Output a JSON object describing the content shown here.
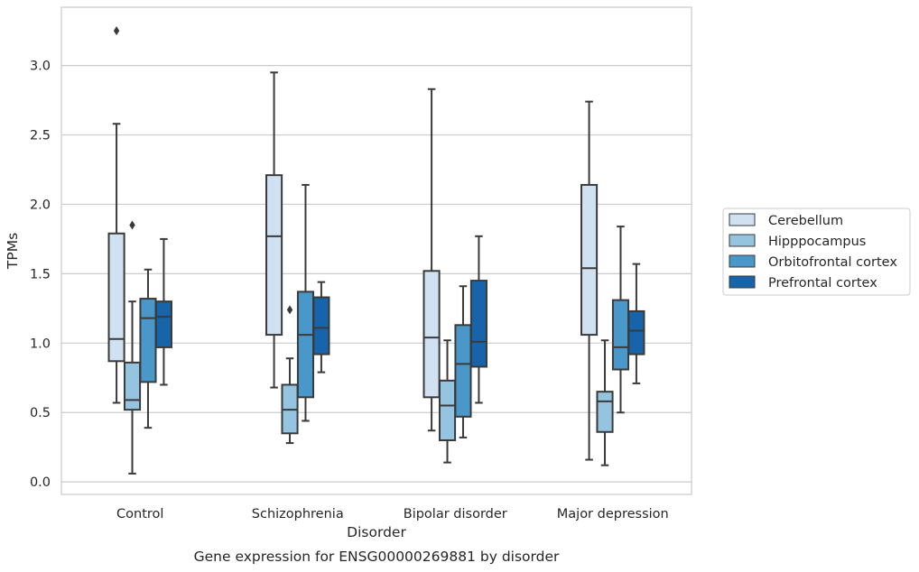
{
  "caption": "Gene expression for ENSG00000269881 by disorder",
  "chart_data": {
    "type": "box",
    "xlabel": "Disorder",
    "ylabel": "TPMs",
    "ylim": [
      -0.09,
      3.42
    ],
    "yticks": [
      0.0,
      0.5,
      1.0,
      1.5,
      2.0,
      2.5,
      3.0
    ],
    "ytick_labels": [
      "0.0",
      "0.5",
      "1.0",
      "1.5",
      "2.0",
      "2.5",
      "3.0"
    ],
    "categories": [
      "Control",
      "Schizophrenia",
      "Bipolar disorder",
      "Major depression"
    ],
    "grid": "horizontal",
    "legend_position": "right",
    "series": [
      {
        "name": "Cerebellum",
        "color": "#d0e1f2",
        "boxes": [
          {
            "whislo": 0.57,
            "q1": 0.87,
            "med": 1.03,
            "q3": 1.79,
            "whishi": 2.58,
            "fliers": [
              3.25
            ]
          },
          {
            "whislo": 0.68,
            "q1": 1.06,
            "med": 1.77,
            "q3": 2.21,
            "whishi": 2.95,
            "fliers": []
          },
          {
            "whislo": 0.37,
            "q1": 0.61,
            "med": 1.04,
            "q3": 1.52,
            "whishi": 2.83,
            "fliers": []
          },
          {
            "whislo": 0.16,
            "q1": 1.06,
            "med": 1.54,
            "q3": 2.14,
            "whishi": 2.74,
            "fliers": []
          }
        ]
      },
      {
        "name": "Hipppocampus",
        "color": "#94c4df",
        "boxes": [
          {
            "whislo": 0.06,
            "q1": 0.52,
            "med": 0.59,
            "q3": 0.86,
            "whishi": 1.3,
            "fliers": [
              1.85
            ]
          },
          {
            "whislo": 0.28,
            "q1": 0.35,
            "med": 0.52,
            "q3": 0.7,
            "whishi": 0.89,
            "fliers": [
              1.24
            ]
          },
          {
            "whislo": 0.14,
            "q1": 0.3,
            "med": 0.55,
            "q3": 0.73,
            "whishi": 1.02,
            "fliers": []
          },
          {
            "whislo": 0.12,
            "q1": 0.36,
            "med": 0.58,
            "q3": 0.65,
            "whishi": 1.02,
            "fliers": []
          }
        ]
      },
      {
        "name": "Orbitofrontal cortex",
        "color": "#4a98c9",
        "boxes": [
          {
            "whislo": 0.39,
            "q1": 0.72,
            "med": 1.18,
            "q3": 1.32,
            "whishi": 1.53,
            "fliers": []
          },
          {
            "whislo": 0.44,
            "q1": 0.61,
            "med": 1.06,
            "q3": 1.37,
            "whishi": 2.14,
            "fliers": []
          },
          {
            "whislo": 0.32,
            "q1": 0.47,
            "med": 0.85,
            "q3": 1.13,
            "whishi": 1.41,
            "fliers": []
          },
          {
            "whislo": 0.5,
            "q1": 0.81,
            "med": 0.97,
            "q3": 1.31,
            "whishi": 1.84,
            "fliers": []
          }
        ]
      },
      {
        "name": "Prefrontal cortex",
        "color": "#1764ab",
        "boxes": [
          {
            "whislo": 0.7,
            "q1": 0.97,
            "med": 1.19,
            "q3": 1.3,
            "whishi": 1.75,
            "fliers": []
          },
          {
            "whislo": 0.79,
            "q1": 0.92,
            "med": 1.11,
            "q3": 1.33,
            "whishi": 1.44,
            "fliers": []
          },
          {
            "whislo": 0.57,
            "q1": 0.83,
            "med": 1.01,
            "q3": 1.45,
            "whishi": 1.77,
            "fliers": []
          },
          {
            "whislo": 0.71,
            "q1": 0.92,
            "med": 1.09,
            "q3": 1.23,
            "whishi": 1.57,
            "fliers": []
          }
        ]
      }
    ],
    "line_color": "#3a3a3a",
    "grid_color": "#cccccc",
    "frame_color": "#cccccc"
  }
}
